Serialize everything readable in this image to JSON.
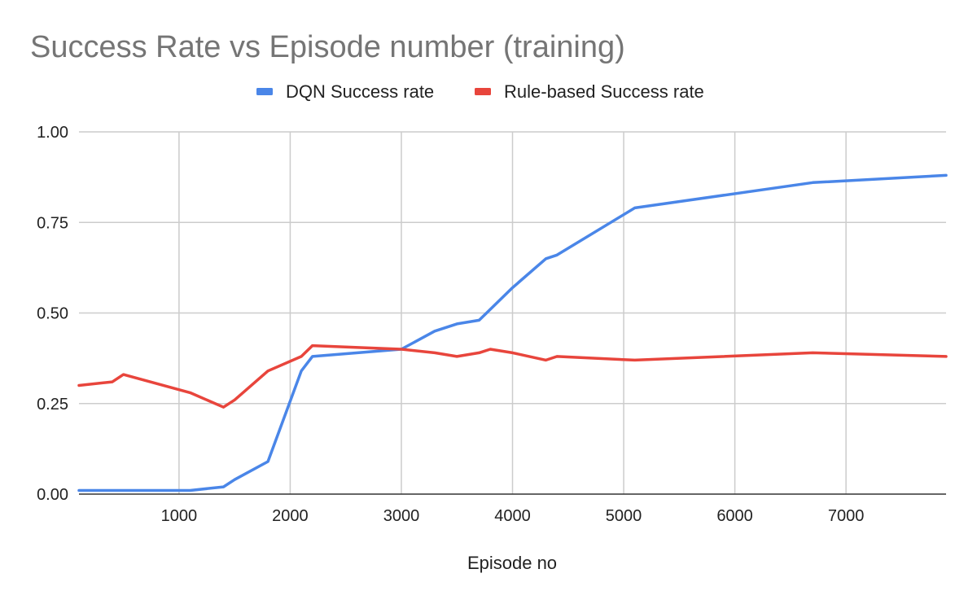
{
  "chart_data": {
    "type": "line",
    "title": "Success Rate vs Episode number (training)",
    "xlabel": "Episode no",
    "ylabel": "",
    "xlim": [
      100,
      7900
    ],
    "ylim": [
      0,
      1
    ],
    "x_ticks": [
      1000,
      2000,
      3000,
      4000,
      5000,
      6000,
      7000
    ],
    "x_tick_labels": [
      "1000",
      "2000",
      "3000",
      "4000",
      "5000",
      "6000",
      "7000"
    ],
    "y_ticks": [
      0,
      0.25,
      0.5,
      0.75,
      1
    ],
    "y_tick_labels": [
      "0.00",
      "0.25",
      "0.50",
      "0.75",
      "1.00"
    ],
    "grid": true,
    "legend_position": "top",
    "series": [
      {
        "name": "DQN Success rate",
        "color": "#4a86e8",
        "points": [
          [
            100,
            0.01
          ],
          [
            500,
            0.01
          ],
          [
            1100,
            0.01
          ],
          [
            1400,
            0.02
          ],
          [
            1500,
            0.04
          ],
          [
            1800,
            0.09
          ],
          [
            2100,
            0.34
          ],
          [
            2200,
            0.38
          ],
          [
            3000,
            0.4
          ],
          [
            3300,
            0.45
          ],
          [
            3500,
            0.47
          ],
          [
            3700,
            0.48
          ],
          [
            4000,
            0.57
          ],
          [
            4300,
            0.65
          ],
          [
            4400,
            0.66
          ],
          [
            5100,
            0.79
          ],
          [
            6700,
            0.86
          ],
          [
            7900,
            0.88
          ]
        ]
      },
      {
        "name": "Rule-based Success rate",
        "color": "#e8453c",
        "points": [
          [
            100,
            0.3
          ],
          [
            400,
            0.31
          ],
          [
            500,
            0.33
          ],
          [
            1100,
            0.28
          ],
          [
            1400,
            0.24
          ],
          [
            1500,
            0.26
          ],
          [
            1800,
            0.34
          ],
          [
            2100,
            0.38
          ],
          [
            2200,
            0.41
          ],
          [
            3000,
            0.4
          ],
          [
            3300,
            0.39
          ],
          [
            3500,
            0.38
          ],
          [
            3700,
            0.39
          ],
          [
            3800,
            0.4
          ],
          [
            4000,
            0.39
          ],
          [
            4300,
            0.37
          ],
          [
            4400,
            0.38
          ],
          [
            5100,
            0.37
          ],
          [
            6700,
            0.39
          ],
          [
            7900,
            0.38
          ]
        ]
      }
    ]
  }
}
